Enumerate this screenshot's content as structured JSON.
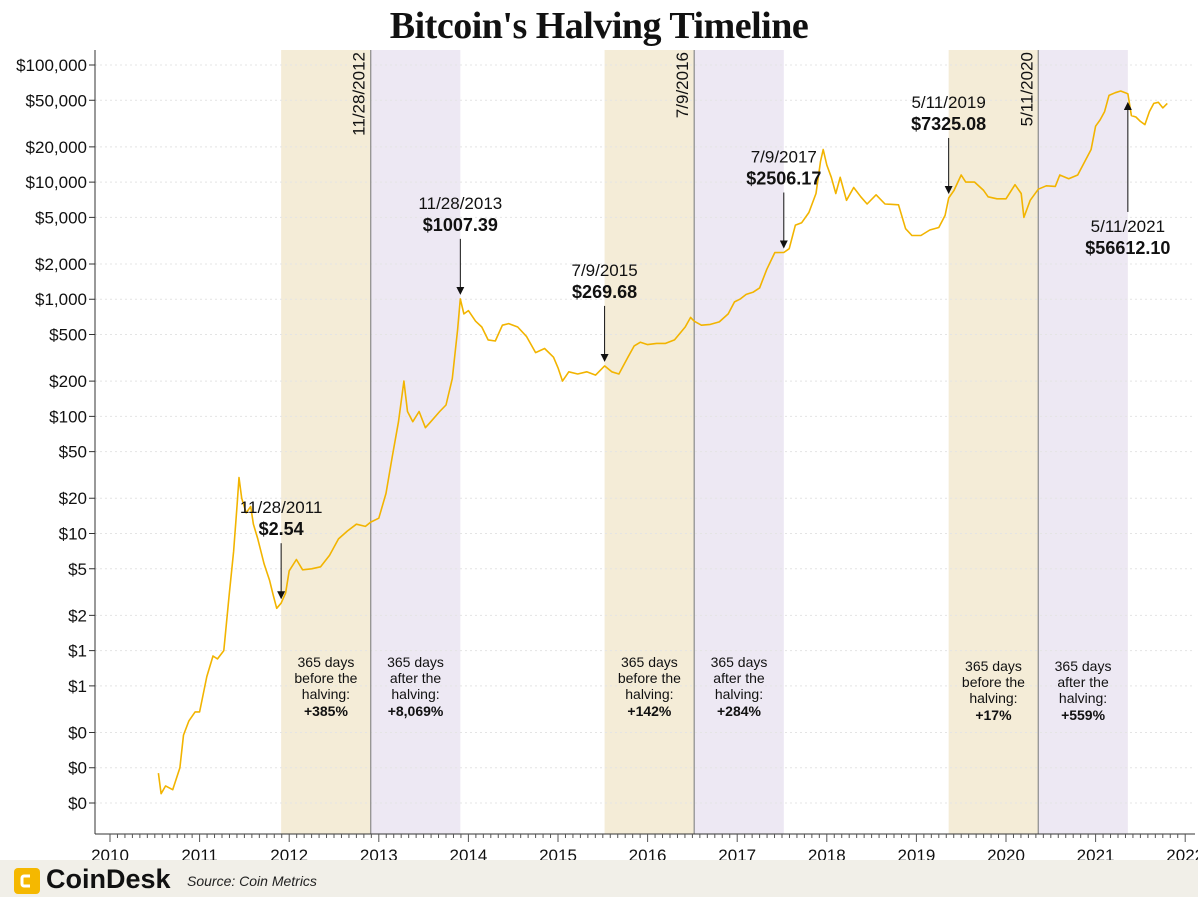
{
  "brand": "CoinDesk",
  "source": "Source: Coin Metrics",
  "colors": {
    "line": "#f2b400",
    "before_band": "#f4ecd7",
    "after_band": "#ede8f3",
    "halving_line": "#8a8a8a"
  },
  "chart_data": {
    "type": "line",
    "title": "Bitcoin's Halving Timeline",
    "y_scale": "log",
    "ylim": [
      0.05,
      130000
    ],
    "xlim": [
      2009.9,
      2022.2
    ],
    "grid": true,
    "y_ticks": [
      {
        "value": 100000,
        "label": "$100,000"
      },
      {
        "value": 50000,
        "label": "$50,000"
      },
      {
        "value": 20000,
        "label": "$20,000"
      },
      {
        "value": 10000,
        "label": "$10,000"
      },
      {
        "value": 5000,
        "label": "$5,000"
      },
      {
        "value": 2000,
        "label": "$2,000"
      },
      {
        "value": 1000,
        "label": "$1,000"
      },
      {
        "value": 500,
        "label": "$500"
      },
      {
        "value": 200,
        "label": "$200"
      },
      {
        "value": 100,
        "label": "$100"
      },
      {
        "value": 50,
        "label": "$50"
      },
      {
        "value": 20,
        "label": "$20"
      },
      {
        "value": 10,
        "label": "$10"
      },
      {
        "value": 5,
        "label": "$5"
      },
      {
        "value": 2,
        "label": "$2"
      },
      {
        "value": 1,
        "label": "$1"
      },
      {
        "value": 0.5,
        "label": "$1"
      },
      {
        "value": 0.2,
        "label": "$0"
      },
      {
        "value": 0.1,
        "label": "$0"
      },
      {
        "value": 0.05,
        "label": "$0"
      }
    ],
    "x_ticks": [
      "2010",
      "2011",
      "2012",
      "2013",
      "2014",
      "2015",
      "2016",
      "2017",
      "2018",
      "2019",
      "2020",
      "2021",
      "2022"
    ],
    "halvings": [
      {
        "x": 2012.91,
        "label": "11/28/2012"
      },
      {
        "x": 2016.52,
        "label": "7/9/2016"
      },
      {
        "x": 2020.36,
        "label": "5/11/2020"
      }
    ],
    "bands": [
      {
        "x0": 2011.91,
        "x1": 2012.91,
        "kind": "before",
        "line1": "365 days",
        "line2": "before the",
        "line3": "halving:",
        "value": "+385%"
      },
      {
        "x0": 2012.91,
        "x1": 2013.91,
        "kind": "after",
        "line1": "365 days",
        "line2": "after the",
        "line3": "halving:",
        "value": "+8,069%"
      },
      {
        "x0": 2015.52,
        "x1": 2016.52,
        "kind": "before",
        "line1": "365 days",
        "line2": "before the",
        "line3": "halving:",
        "value": "+142%"
      },
      {
        "x0": 2016.52,
        "x1": 2017.52,
        "kind": "after",
        "line1": "365 days",
        "line2": "after the",
        "line3": "halving:",
        "value": "+284%"
      },
      {
        "x0": 2019.36,
        "x1": 2020.36,
        "kind": "before",
        "line1": "365 days",
        "line2": "before the",
        "line3": "halving:",
        "value": "+17%"
      },
      {
        "x0": 2020.36,
        "x1": 2021.36,
        "kind": "after",
        "line1": "365 days",
        "line2": "after the",
        "line3": "halving:",
        "value": "+559%"
      }
    ],
    "annotations": [
      {
        "date": "11/28/2011",
        "price": "$2.54",
        "x": 2011.91,
        "y": 2.54,
        "side": "above"
      },
      {
        "date": "11/28/2013",
        "price": "$1007.39",
        "x": 2013.91,
        "y": 1007.39,
        "side": "above"
      },
      {
        "date": "7/9/2015",
        "price": "$269.68",
        "x": 2015.52,
        "y": 269.68,
        "side": "above"
      },
      {
        "date": "7/9/2017",
        "price": "$2506.17",
        "x": 2017.52,
        "y": 2506.17,
        "side": "above"
      },
      {
        "date": "5/11/2019",
        "price": "$7325.08",
        "x": 2019.36,
        "y": 7325.08,
        "side": "above"
      },
      {
        "date": "5/11/2021",
        "price": "$56612.10",
        "x": 2021.36,
        "y": 56612.1,
        "side": "below"
      }
    ],
    "series": [
      {
        "points": [
          [
            2010.54,
            0.09
          ],
          [
            2010.57,
            0.06
          ],
          [
            2010.62,
            0.07
          ],
          [
            2010.7,
            0.065
          ],
          [
            2010.78,
            0.1
          ],
          [
            2010.82,
            0.19
          ],
          [
            2010.88,
            0.25
          ],
          [
            2010.95,
            0.3
          ],
          [
            2011.0,
            0.3
          ],
          [
            2011.08,
            0.6
          ],
          [
            2011.15,
            0.9
          ],
          [
            2011.2,
            0.85
          ],
          [
            2011.27,
            1.0
          ],
          [
            2011.33,
            3.0
          ],
          [
            2011.38,
            7.0
          ],
          [
            2011.42,
            18
          ],
          [
            2011.44,
            30
          ],
          [
            2011.47,
            20
          ],
          [
            2011.52,
            15
          ],
          [
            2011.57,
            17
          ],
          [
            2011.6,
            12
          ],
          [
            2011.65,
            9
          ],
          [
            2011.72,
            5.5
          ],
          [
            2011.78,
            4.0
          ],
          [
            2011.82,
            3.0
          ],
          [
            2011.86,
            2.3
          ],
          [
            2011.91,
            2.54
          ],
          [
            2011.96,
            3.1
          ],
          [
            2012.0,
            4.8
          ],
          [
            2012.08,
            6.0
          ],
          [
            2012.15,
            4.9
          ],
          [
            2012.25,
            5.0
          ],
          [
            2012.35,
            5.2
          ],
          [
            2012.45,
            6.5
          ],
          [
            2012.55,
            9.0
          ],
          [
            2012.65,
            10.5
          ],
          [
            2012.75,
            12
          ],
          [
            2012.85,
            11.5
          ],
          [
            2012.91,
            12.5
          ],
          [
            2013.0,
            13.5
          ],
          [
            2013.08,
            22
          ],
          [
            2013.15,
            45
          ],
          [
            2013.22,
            90
          ],
          [
            2013.28,
            200
          ],
          [
            2013.32,
            110
          ],
          [
            2013.38,
            90
          ],
          [
            2013.45,
            110
          ],
          [
            2013.52,
            80
          ],
          [
            2013.58,
            90
          ],
          [
            2013.68,
            110
          ],
          [
            2013.75,
            125
          ],
          [
            2013.82,
            210
          ],
          [
            2013.88,
            550
          ],
          [
            2013.91,
            1007.39
          ],
          [
            2013.95,
            750
          ],
          [
            2014.0,
            800
          ],
          [
            2014.08,
            650
          ],
          [
            2014.15,
            580
          ],
          [
            2014.22,
            450
          ],
          [
            2014.3,
            440
          ],
          [
            2014.38,
            600
          ],
          [
            2014.45,
            620
          ],
          [
            2014.55,
            580
          ],
          [
            2014.65,
            480
          ],
          [
            2014.75,
            350
          ],
          [
            2014.85,
            380
          ],
          [
            2014.95,
            320
          ],
          [
            2015.0,
            260
          ],
          [
            2015.05,
            200
          ],
          [
            2015.12,
            240
          ],
          [
            2015.22,
            230
          ],
          [
            2015.32,
            240
          ],
          [
            2015.42,
            225
          ],
          [
            2015.52,
            269.68
          ],
          [
            2015.6,
            240
          ],
          [
            2015.68,
            230
          ],
          [
            2015.78,
            320
          ],
          [
            2015.85,
            400
          ],
          [
            2015.92,
            430
          ],
          [
            2016.0,
            410
          ],
          [
            2016.1,
            420
          ],
          [
            2016.2,
            420
          ],
          [
            2016.3,
            450
          ],
          [
            2016.42,
            580
          ],
          [
            2016.48,
            700
          ],
          [
            2016.52,
            650
          ],
          [
            2016.6,
            600
          ],
          [
            2016.7,
            610
          ],
          [
            2016.8,
            640
          ],
          [
            2016.9,
            750
          ],
          [
            2016.97,
            950
          ],
          [
            2017.03,
            1000
          ],
          [
            2017.1,
            1100
          ],
          [
            2017.18,
            1150
          ],
          [
            2017.25,
            1250
          ],
          [
            2017.33,
            1800
          ],
          [
            2017.42,
            2500
          ],
          [
            2017.52,
            2506.17
          ],
          [
            2017.58,
            2700
          ],
          [
            2017.65,
            4300
          ],
          [
            2017.72,
            4500
          ],
          [
            2017.8,
            5500
          ],
          [
            2017.88,
            8000
          ],
          [
            2017.93,
            15000
          ],
          [
            2017.96,
            19000
          ],
          [
            2018.0,
            14000
          ],
          [
            2018.05,
            11000
          ],
          [
            2018.1,
            8000
          ],
          [
            2018.15,
            11000
          ],
          [
            2018.22,
            7000
          ],
          [
            2018.3,
            9000
          ],
          [
            2018.38,
            7500
          ],
          [
            2018.45,
            6500
          ],
          [
            2018.55,
            7800
          ],
          [
            2018.65,
            6500
          ],
          [
            2018.8,
            6400
          ],
          [
            2018.88,
            4000
          ],
          [
            2018.95,
            3500
          ],
          [
            2019.05,
            3500
          ],
          [
            2019.15,
            3900
          ],
          [
            2019.25,
            4100
          ],
          [
            2019.32,
            5200
          ],
          [
            2019.36,
            7325.08
          ],
          [
            2019.42,
            8500
          ],
          [
            2019.5,
            11500
          ],
          [
            2019.55,
            10000
          ],
          [
            2019.65,
            10000
          ],
          [
            2019.75,
            8500
          ],
          [
            2019.8,
            7500
          ],
          [
            2019.9,
            7200
          ],
          [
            2020.0,
            7200
          ],
          [
            2020.1,
            9500
          ],
          [
            2020.17,
            8000
          ],
          [
            2020.2,
            5000
          ],
          [
            2020.27,
            7000
          ],
          [
            2020.36,
            8700
          ],
          [
            2020.45,
            9300
          ],
          [
            2020.55,
            9200
          ],
          [
            2020.6,
            11500
          ],
          [
            2020.7,
            10700
          ],
          [
            2020.8,
            11500
          ],
          [
            2020.88,
            15000
          ],
          [
            2020.95,
            19000
          ],
          [
            2021.0,
            30000
          ],
          [
            2021.05,
            34000
          ],
          [
            2021.1,
            40000
          ],
          [
            2021.15,
            55000
          ],
          [
            2021.22,
            58000
          ],
          [
            2021.28,
            60000
          ],
          [
            2021.33,
            58000
          ],
          [
            2021.36,
            56612.1
          ],
          [
            2021.4,
            37000
          ],
          [
            2021.45,
            36000
          ],
          [
            2021.5,
            33000
          ],
          [
            2021.55,
            31000
          ],
          [
            2021.6,
            40000
          ],
          [
            2021.65,
            47000
          ],
          [
            2021.7,
            48000
          ],
          [
            2021.75,
            43000
          ],
          [
            2021.8,
            47000
          ]
        ]
      }
    ]
  }
}
